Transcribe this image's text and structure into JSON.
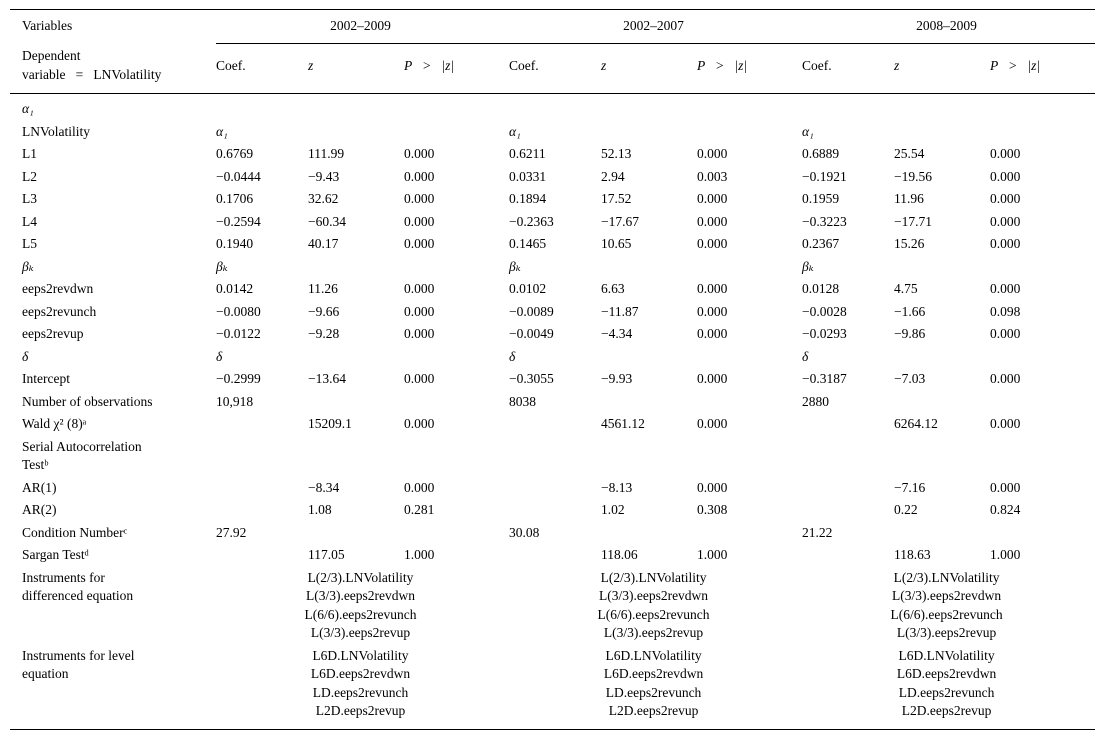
{
  "table": {
    "col1_header": "Variables",
    "dep_var": "Dependent\nvariable   =   LNVolatility",
    "groups": [
      "2002–2009",
      "2002–2007",
      "2008–2009"
    ],
    "sub_headers": [
      "Coef.",
      "z",
      "P   >   |z|"
    ],
    "rows": [
      {
        "label": "α₁",
        "greek_label": true,
        "cells": [
          "",
          "",
          "",
          "",
          "",
          "",
          "",
          "",
          ""
        ]
      },
      {
        "label": "LNVolatility",
        "cells": [
          "α₁",
          "",
          "",
          "α₁",
          "",
          "",
          "α₁",
          "",
          ""
        ]
      },
      {
        "label": "L1",
        "cells": [
          "0.6769",
          "111.99",
          "0.000",
          "0.6211",
          "52.13",
          "0.000",
          "0.6889",
          "25.54",
          "0.000"
        ]
      },
      {
        "label": "L2",
        "cells": [
          "−0.0444",
          "−9.43",
          "0.000",
          "0.0331",
          "2.94",
          "0.003",
          "−0.1921",
          "−19.56",
          "0.000"
        ]
      },
      {
        "label": "L3",
        "cells": [
          "0.1706",
          "32.62",
          "0.000",
          "0.1894",
          "17.52",
          "0.000",
          "0.1959",
          "11.96",
          "0.000"
        ]
      },
      {
        "label": "L4",
        "cells": [
          "−0.2594",
          "−60.34",
          "0.000",
          "−0.2363",
          "−17.67",
          "0.000",
          "−0.3223",
          "−17.71",
          "0.000"
        ]
      },
      {
        "label": "L5",
        "cells": [
          "0.1940",
          "40.17",
          "0.000",
          "0.1465",
          "10.65",
          "0.000",
          "0.2367",
          "15.26",
          "0.000"
        ]
      },
      {
        "label": "βₖ",
        "greek_label": true,
        "cells": [
          "βₖ",
          "",
          "",
          "βₖ",
          "",
          "",
          "βₖ",
          "",
          ""
        ]
      },
      {
        "label": "eeps2revdwn",
        "cells": [
          "0.0142",
          "11.26",
          "0.000",
          "0.0102",
          "6.63",
          "0.000",
          "0.0128",
          "4.75",
          "0.000"
        ]
      },
      {
        "label": "eeps2revunch",
        "cells": [
          "−0.0080",
          "−9.66",
          "0.000",
          "−0.0089",
          "−11.87",
          "0.000",
          "−0.0028",
          "−1.66",
          "0.098"
        ]
      },
      {
        "label": "eeps2revup",
        "cells": [
          "−0.0122",
          "−9.28",
          "0.000",
          "−0.0049",
          "−4.34",
          "0.000",
          "−0.0293",
          "−9.86",
          "0.000"
        ]
      },
      {
        "label": "δ",
        "greek_label": true,
        "cells": [
          "δ",
          "",
          "",
          "δ",
          "",
          "",
          "δ",
          "",
          ""
        ]
      },
      {
        "label": "Intercept",
        "cells": [
          "−0.2999",
          "−13.64",
          "0.000",
          "−0.3055",
          "−9.93",
          "0.000",
          "−0.3187",
          "−7.03",
          "0.000"
        ]
      },
      {
        "label": "Number of observations",
        "cells": [
          "10,918",
          "",
          "",
          "8038",
          "",
          "",
          "2880",
          "",
          ""
        ]
      },
      {
        "label": "Wald χ² (8)ᵃ",
        "cells": [
          "",
          "15209.1",
          "0.000",
          "",
          "4561.12",
          "0.000",
          "",
          "6264.12",
          "0.000"
        ]
      },
      {
        "label": "Serial Autocorrelation\nTestᵇ",
        "cells": [
          "",
          "",
          "",
          "",
          "",
          "",
          "",
          "",
          ""
        ]
      },
      {
        "label": "AR(1)",
        "cells": [
          "",
          "−8.34",
          "0.000",
          "",
          "−8.13",
          "0.000",
          "",
          "−7.16",
          "0.000"
        ]
      },
      {
        "label": "AR(2)",
        "cells": [
          "",
          "1.08",
          "0.281",
          "",
          "1.02",
          "0.308",
          "",
          "0.22",
          "0.824"
        ]
      },
      {
        "label": "Condition Numberᶜ",
        "cells": [
          "27.92",
          "",
          "",
          "30.08",
          "",
          "",
          "21.22",
          "",
          ""
        ]
      },
      {
        "label": "Sargan Testᵈ",
        "cells": [
          "",
          "117.05",
          "1.000",
          "",
          "118.06",
          "1.000",
          "",
          "118.63",
          "1.000"
        ]
      },
      {
        "label": "Instruments for\ndifferenced equation",
        "span": [
          "L(2/3).LNVolatility\nL(3/3).eeps2revdwn\nL(6/6).eeps2revunch\nL(3/3).eeps2revup",
          "L(2/3).LNVolatility\nL(3/3).eeps2revdwn\nL(6/6).eeps2revunch\nL(3/3).eeps2revup",
          "L(2/3).LNVolatility\nL(3/3).eeps2revdwn\nL(6/6).eeps2revunch\nL(3/3).eeps2revup"
        ]
      },
      {
        "label": "Instruments for level\nequation",
        "span": [
          "L6D.LNVolatility\nL6D.eeps2revdwn\nLD.eeps2revunch\nL2D.eeps2revup",
          "L6D.LNVolatility\nL6D.eeps2revdwn\nLD.eeps2revunch\nL2D.eeps2revup",
          "L6D.LNVolatility\nL6D.eeps2revdwn\nLD.eeps2revunch\nL2D.eeps2revup"
        ]
      }
    ]
  }
}
